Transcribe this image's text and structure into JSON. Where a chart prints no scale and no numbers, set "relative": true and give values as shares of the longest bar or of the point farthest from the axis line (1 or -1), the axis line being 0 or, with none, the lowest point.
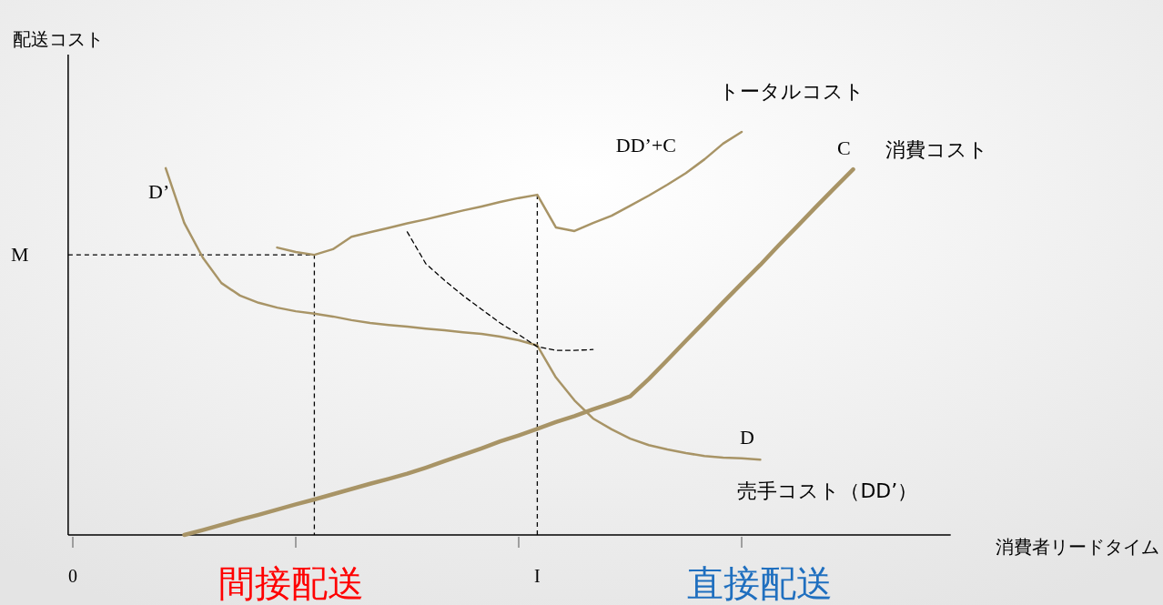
{
  "chart_data": {
    "type": "line",
    "relative": true,
    "xlabel": "消費者リードタイム",
    "ylabel": "配送コスト",
    "categories": [
      "0",
      null,
      null,
      null,
      null,
      null,
      null,
      null,
      null,
      null,
      null,
      null,
      null,
      null,
      null,
      null,
      null,
      null,
      null,
      null,
      null,
      null,
      null,
      null,
      null,
      "I",
      null,
      null,
      null,
      null,
      null,
      null,
      null,
      null,
      null,
      null,
      null,
      null,
      null,
      null,
      null,
      null,
      null,
      null,
      null,
      null,
      null,
      null
    ],
    "series": [
      {
        "name": "DD’+C",
        "color": "#a89466",
        "values": [
          null,
          null,
          null,
          null,
          null,
          null,
          null,
          null,
          null,
          null,
          null,
          0.713,
          0.702,
          0.695,
          0.709,
          0.74,
          0.751,
          0.762,
          0.773,
          0.783,
          0.794,
          0.805,
          0.815,
          0.826,
          0.836,
          0.844,
          0.763,
          0.754,
          0.774,
          0.792,
          0.817,
          0.842,
          0.869,
          0.898,
          0.932,
          0.971,
          1,
          null,
          null,
          null,
          null,
          null,
          null,
          null,
          null,
          null,
          null,
          null
        ]
      },
      {
        "name": "売手コスト（DD’）",
        "color": "#a89466",
        "values": [
          null,
          null,
          null,
          null,
          null,
          0.91,
          0.774,
          0.688,
          0.625,
          0.594,
          0.576,
          0.564,
          0.555,
          0.549,
          0.542,
          0.533,
          0.526,
          0.521,
          0.517,
          0.512,
          0.508,
          0.503,
          0.499,
          0.492,
          0.483,
          0.47,
          0.391,
          0.334,
          0.289,
          0.262,
          0.239,
          0.223,
          0.212,
          0.203,
          0.196,
          0.192,
          0.19,
          0.187,
          null,
          null,
          null,
          null,
          null,
          null,
          null,
          null,
          null,
          null
        ]
      },
      {
        "name": "消費コスト",
        "color": "#a89466",
        "values": [
          null,
          null,
          null,
          null,
          null,
          null,
          0,
          0.012,
          0.025,
          0.038,
          0.05,
          0.063,
          0.076,
          0.088,
          0.101,
          0.114,
          0.127,
          0.139,
          0.152,
          0.167,
          0.183,
          0.199,
          0.215,
          0.232,
          0.247,
          0.263,
          0.28,
          0.295,
          0.312,
          0.327,
          0.344,
          0.387,
          0.434,
          0.482,
          0.529,
          0.577,
          0.624,
          0.67,
          0.719,
          0.766,
          0.814,
          0.861,
          0.907,
          null,
          null,
          null,
          null,
          null
        ]
      },
      {
        "color": "#000000",
        "line_style": "dashed",
        "values": [
          null,
          null,
          null,
          null,
          null,
          null,
          null,
          null,
          null,
          null,
          null,
          null,
          null,
          null,
          null,
          null,
          null,
          null,
          0.752,
          0.673,
          0.632,
          0.594,
          0.56,
          0.526,
          0.497,
          0.467,
          0.458,
          0.458,
          0.46,
          null,
          null,
          null,
          null,
          null,
          null,
          null,
          null,
          null,
          null,
          null,
          null,
          null,
          null,
          null,
          null,
          null,
          null,
          null
        ]
      }
    ],
    "ref_lines": [
      {
        "axis": "y",
        "value": 0.695,
        "label": "M",
        "color": "#000000",
        "line_style": "dashed"
      },
      {
        "axis": "x",
        "value": "I",
        "color": "#000000",
        "line_style": "dashed"
      }
    ],
    "annotations": [
      "トータルコスト",
      "D’",
      "D",
      "C",
      "間接配送",
      "直接配送"
    ]
  }
}
